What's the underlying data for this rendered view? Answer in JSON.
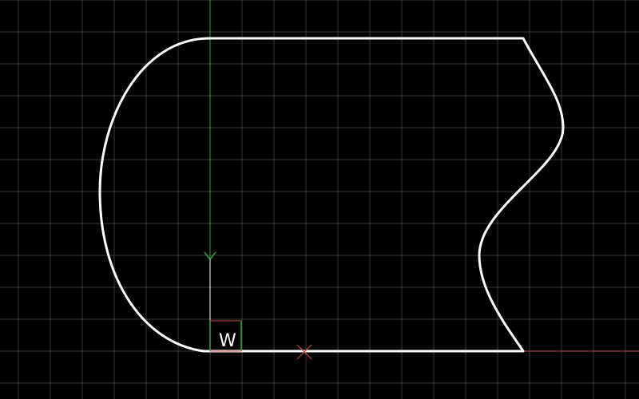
{
  "app": {
    "kind": "cad-model-space-viewport"
  },
  "viewport": {
    "background_color": "#000000",
    "grid": {
      "visible": true,
      "color": "#3a3a3a"
    }
  },
  "ucs_icon": {
    "label": "W",
    "x_axis_color": "#c84a4a",
    "y_axis_color": "#3aa34a",
    "icon_box_color": "#c84a4a"
  },
  "axes": {
    "x_axis_color": "#b8464a",
    "y_axis_color": "#3f9a4c"
  },
  "drawing": {
    "outline_color": "#ffffff",
    "outline_shape": "closed polyline with left arc, right S-curve, straight top and bottom edges"
  },
  "cursor": {
    "color": "#c84a4a",
    "icon": "crosshair-x-icon"
  }
}
